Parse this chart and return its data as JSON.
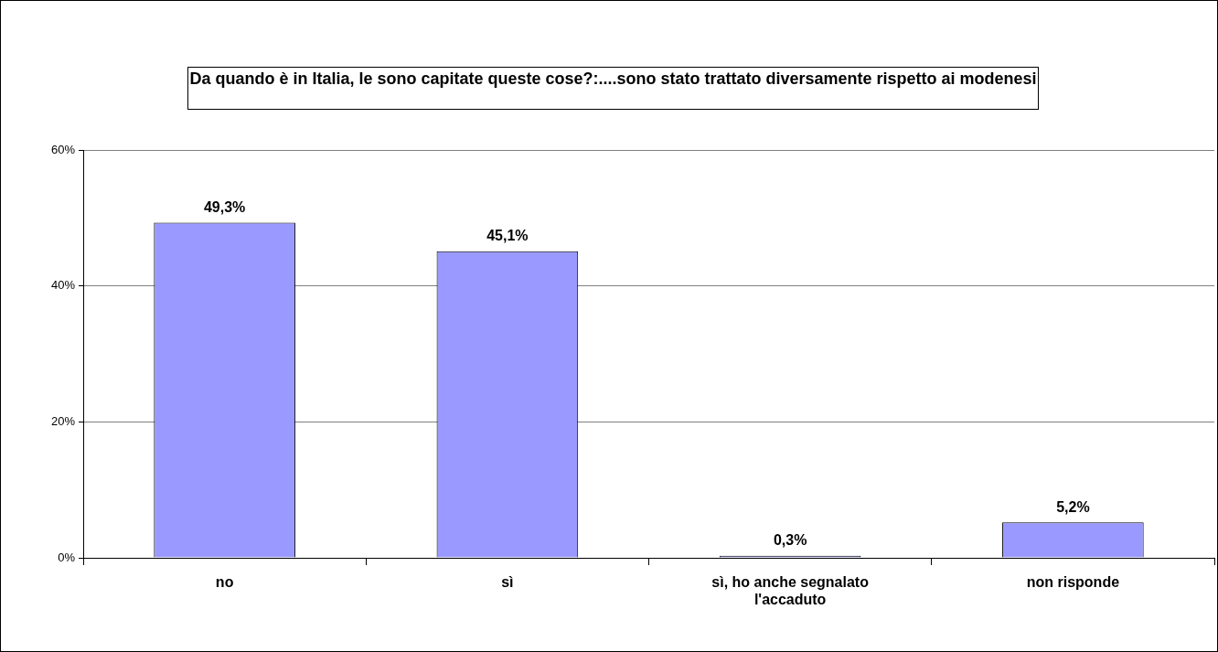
{
  "chart_data": {
    "type": "bar",
    "title": "Da quando è in Italia, le sono capitate queste cose?:....sono stato trattato diversamente rispetto ai modenesi",
    "categories": [
      "no",
      "sì",
      "sì, ho anche segnalato l'accaduto",
      "non risponde"
    ],
    "values": [
      49.3,
      45.1,
      0.3,
      5.2
    ],
    "value_labels": [
      "49,3%",
      "45,1%",
      "0,3%",
      "5,2%"
    ],
    "color": "#9999ff",
    "ylim": [
      0,
      60
    ],
    "yticks": [
      {
        "value": 0,
        "label": "0%"
      },
      {
        "value": 20,
        "label": "20%"
      },
      {
        "value": 40,
        "label": "40%"
      },
      {
        "value": 60,
        "label": "60%"
      }
    ],
    "grid": "y",
    "legend": false
  }
}
